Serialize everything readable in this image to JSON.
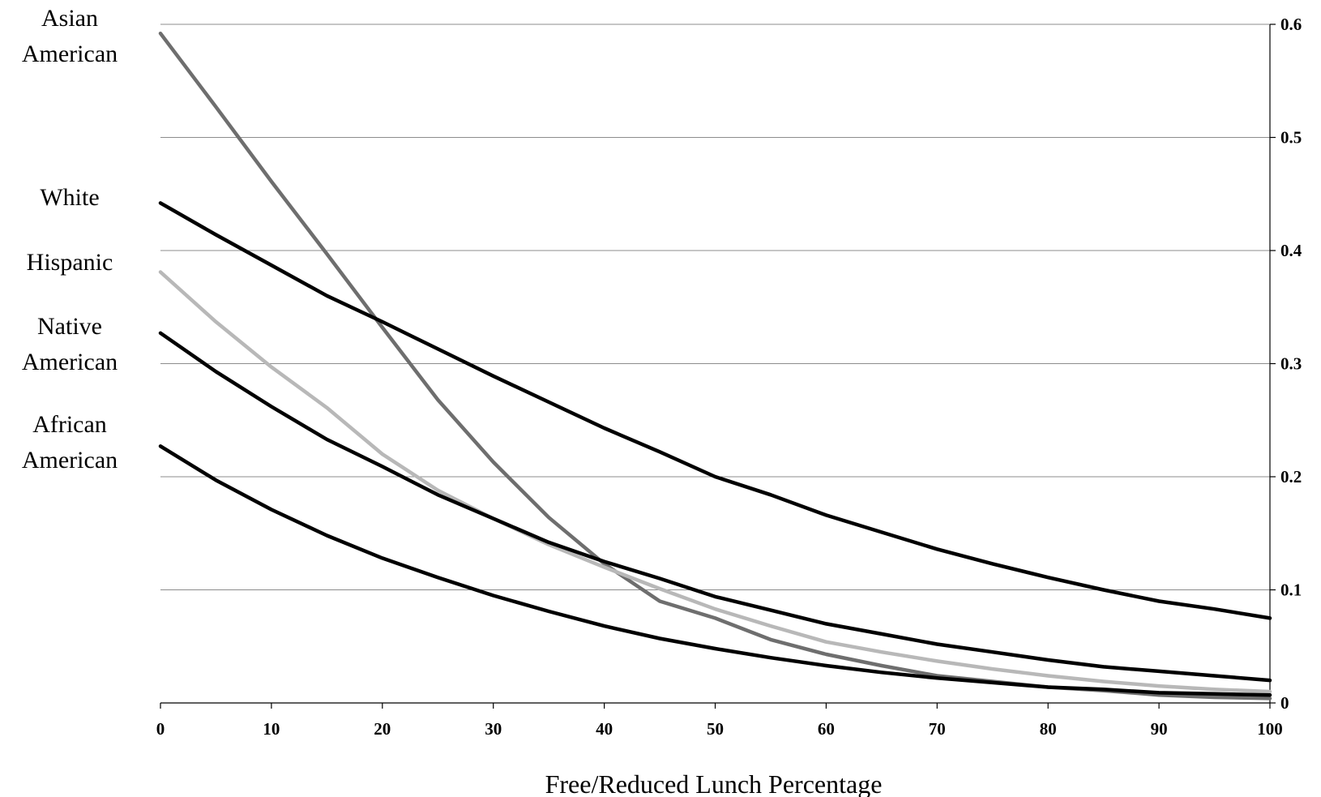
{
  "chart_data": {
    "type": "line",
    "title": "",
    "xlabel": "Free/Reduced Lunch Percentage",
    "ylabel": "",
    "xlim": [
      0,
      100
    ],
    "ylim": [
      0,
      0.6
    ],
    "x_ticks": [
      "0",
      "10",
      "20",
      "30",
      "40",
      "50",
      "60",
      "70",
      "80",
      "90",
      "100"
    ],
    "y_ticks": [
      "0",
      "0.1",
      "0.2",
      "0.3",
      "0.4",
      "0.5",
      "0.6"
    ],
    "y_axis_side": "right",
    "grid": "horizontal",
    "legend": "left labels",
    "x": [
      0,
      5,
      10,
      15,
      20,
      25,
      30,
      35,
      40,
      45,
      50,
      55,
      60,
      65,
      70,
      75,
      80,
      85,
      90,
      95,
      100
    ],
    "series": [
      {
        "name": "Asian American",
        "color": "#6e6e6e",
        "values": [
          0.592,
          0.527,
          0.461,
          0.397,
          0.332,
          0.268,
          0.213,
          0.164,
          0.123,
          0.09,
          0.075,
          0.056,
          0.043,
          0.033,
          0.024,
          0.019,
          0.014,
          0.011,
          0.007,
          0.005,
          0.004
        ]
      },
      {
        "name": "White",
        "color": "#000000",
        "values": [
          0.442,
          0.414,
          0.387,
          0.36,
          0.337,
          0.313,
          0.289,
          0.266,
          0.243,
          0.222,
          0.2,
          0.184,
          0.166,
          0.151,
          0.136,
          0.123,
          0.111,
          0.1,
          0.09,
          0.083,
          0.075
        ]
      },
      {
        "name": "Hispanic",
        "color": "#b8b8b8",
        "values": [
          0.381,
          0.337,
          0.297,
          0.261,
          0.22,
          0.188,
          0.163,
          0.14,
          0.12,
          0.101,
          0.083,
          0.068,
          0.054,
          0.045,
          0.037,
          0.03,
          0.024,
          0.019,
          0.015,
          0.012,
          0.01
        ]
      },
      {
        "name": "Native American",
        "color": "#000000",
        "values": [
          0.327,
          0.293,
          0.262,
          0.233,
          0.209,
          0.184,
          0.163,
          0.142,
          0.125,
          0.11,
          0.094,
          0.082,
          0.07,
          0.061,
          0.052,
          0.045,
          0.038,
          0.032,
          0.028,
          0.024,
          0.02
        ]
      },
      {
        "name": "African American",
        "color": "#000000",
        "values": [
          0.227,
          0.197,
          0.171,
          0.148,
          0.128,
          0.111,
          0.095,
          0.081,
          0.068,
          0.057,
          0.048,
          0.04,
          0.033,
          0.027,
          0.022,
          0.018,
          0.014,
          0.012,
          0.009,
          0.008,
          0.007
        ]
      }
    ],
    "series_label_lines": [
      [
        "Asian",
        "American"
      ],
      [
        "White"
      ],
      [
        "Hispanic"
      ],
      [
        "Native",
        "American"
      ],
      [
        "African",
        "American"
      ]
    ]
  }
}
